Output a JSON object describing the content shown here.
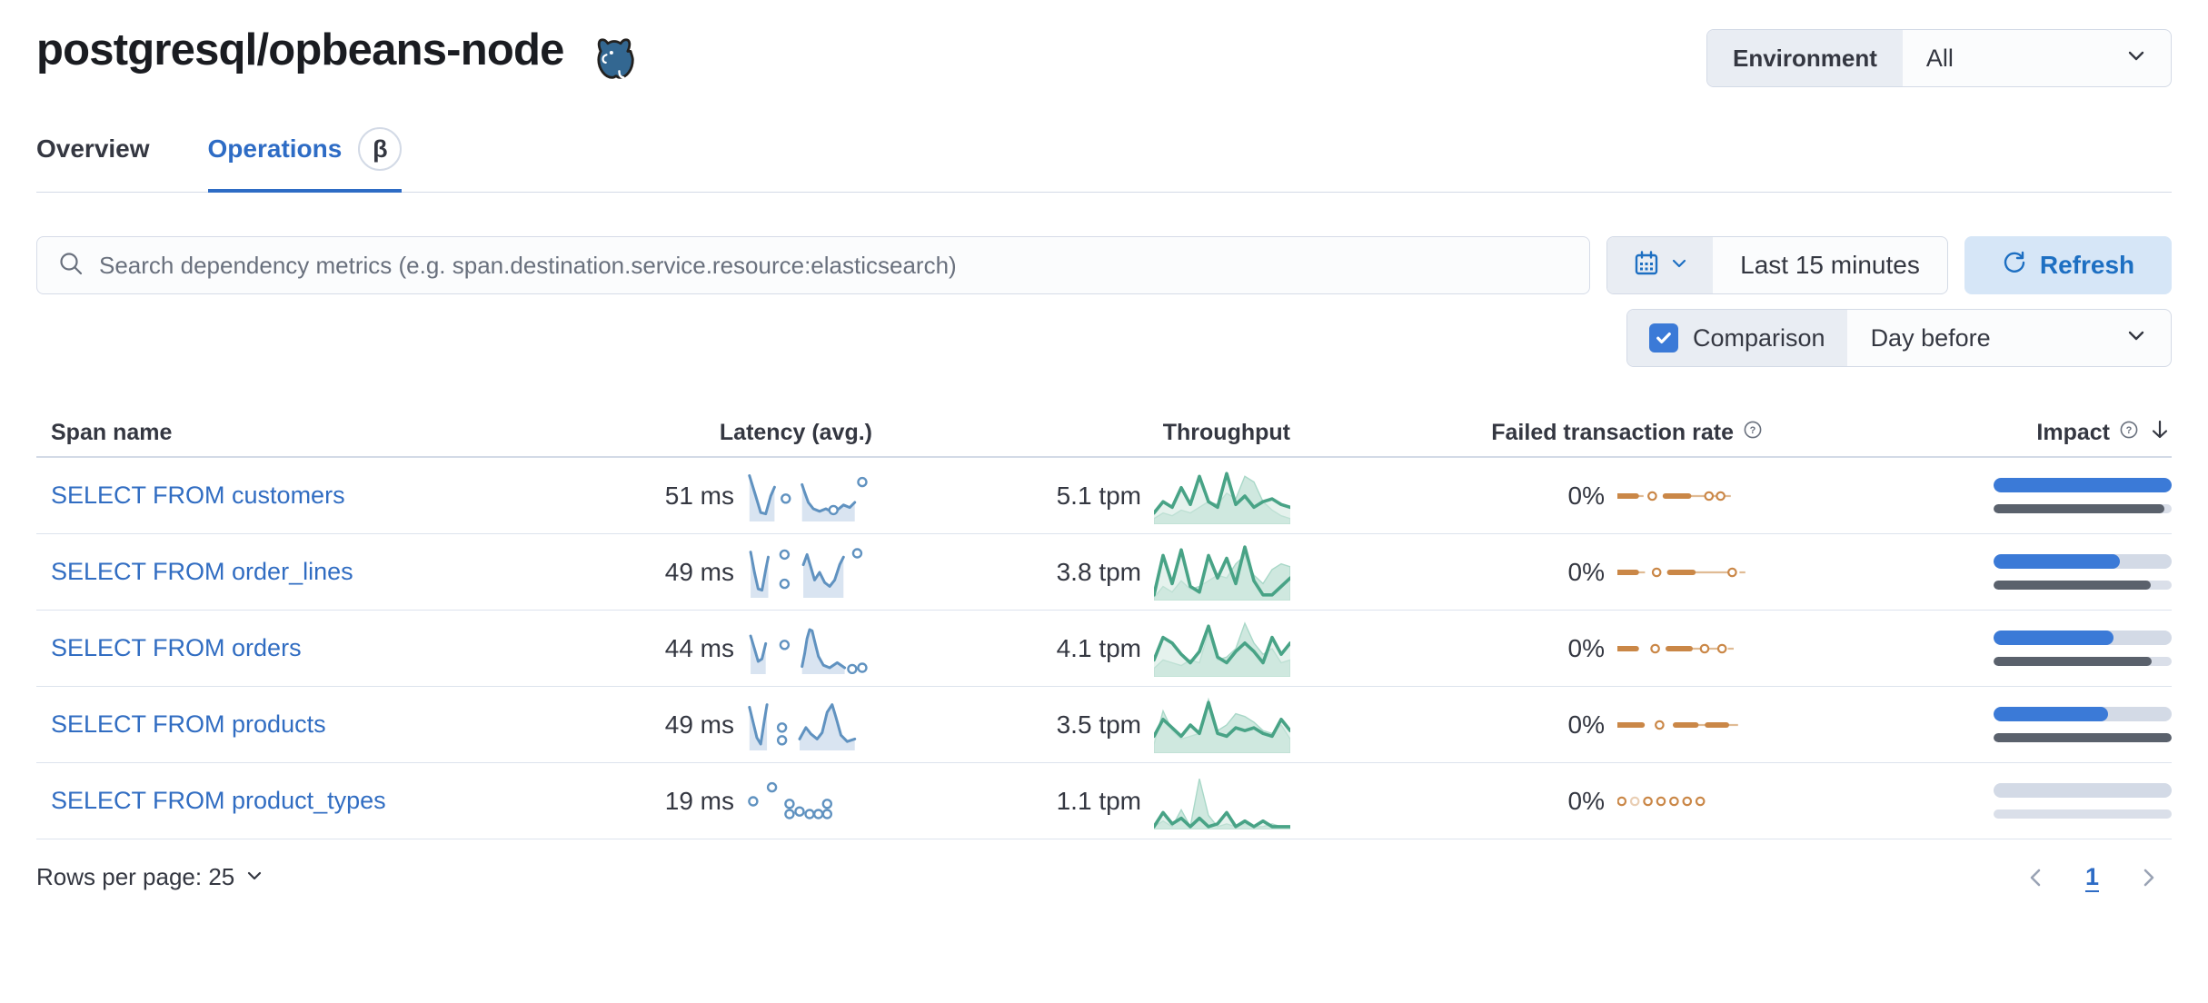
{
  "app": {
    "title": "postgresql/opbeans-node",
    "title_icon": "postgresql-elephant-icon"
  },
  "environment_filter": {
    "label": "Environment",
    "value": "All"
  },
  "tabs": [
    {
      "label": "Overview",
      "active": false
    },
    {
      "label": "Operations",
      "active": true,
      "badge": "β"
    }
  ],
  "toolbar": {
    "search": {
      "placeholder": "Search dependency metrics (e.g. span.destination.service.resource:elasticsearch)"
    },
    "time_picker": {
      "value": "Last 15 minutes"
    },
    "refresh_button": {
      "label": "Refresh"
    },
    "comparison": {
      "label": "Comparison",
      "checked": true,
      "value": "Day before"
    }
  },
  "table": {
    "columns": [
      {
        "label": "Span name"
      },
      {
        "label": "Latency (avg.)"
      },
      {
        "label": "Throughput"
      },
      {
        "label": "Failed transaction rate",
        "help_icon": true
      },
      {
        "label": "Impact",
        "help_icon": true,
        "sorted": "desc"
      }
    ],
    "rows": [
      {
        "span_name": "SELECT FROM customers",
        "latency": "51 ms",
        "throughput": "5.1 tpm",
        "failed_rate": "0%",
        "impact": {
          "current": 1.0,
          "previous": 0.96
        },
        "latency_spark": {
          "segments": [
            [
              [
                2,
                4
              ],
              [
                7,
                20
              ],
              [
                11,
                33
              ],
              [
                15,
                34
              ],
              [
                19,
                20
              ],
              [
                22,
                13
              ]
            ],
            [
              [
                44,
                11
              ],
              [
                46,
                17
              ],
              [
                49,
                25
              ],
              [
                53,
                30
              ],
              [
                58,
                32
              ],
              [
                63,
                30
              ],
              [
                67,
                32
              ],
              [
                72,
                31
              ],
              [
                77,
                27
              ],
              [
                82,
                29
              ],
              [
                86,
                25
              ]
            ]
          ],
          "dots": [
            [
              31,
              22
            ],
            [
              69,
              31
            ],
            [
              92,
              9
            ]
          ]
        },
        "throughput_spark": {
          "current": [
            32,
            24,
            28,
            14,
            26,
            6,
            24,
            28,
            4,
            26,
            20,
            28,
            24,
            22,
            26,
            28
          ],
          "previous": [
            36,
            32,
            34,
            30,
            32,
            28,
            24,
            26,
            18,
            22,
            6,
            10,
            24,
            30,
            34,
            36
          ]
        },
        "failed_spark": {
          "thick": [
            [
              0,
              13
            ],
            [
              33,
              49
            ]
          ],
          "thin": [
            [
              13,
              18
            ],
            [
              49,
              61
            ],
            [
              66,
              68
            ],
            [
              74,
              78
            ]
          ],
          "dots": [
            24,
            63,
            71
          ],
          "faint_dots": []
        }
      },
      {
        "span_name": "SELECT FROM order_lines",
        "latency": "49 ms",
        "throughput": "3.8 tpm",
        "failed_rate": "0%",
        "impact": {
          "current": 0.71,
          "previous": 0.885
        },
        "latency_spark": {
          "segments": [
            [
              [
                3,
                4
              ],
              [
                6,
                20
              ],
              [
                9,
                33
              ],
              [
                12,
                34
              ],
              [
                15,
                18
              ],
              [
                17,
                8
              ]
            ],
            [
              [
                45,
                14
              ],
              [
                48,
                6
              ],
              [
                51,
                16
              ],
              [
                54,
                26
              ],
              [
                58,
                20
              ],
              [
                62,
                28
              ],
              [
                66,
                31
              ],
              [
                70,
                26
              ],
              [
                74,
                14
              ],
              [
                77,
                8
              ]
            ]
          ],
          "dots": [
            [
              30,
              6
            ],
            [
              30,
              29
            ],
            [
              88,
              5
            ]
          ]
        },
        "throughput_spark": {
          "current": [
            36,
            8,
            28,
            4,
            30,
            34,
            8,
            24,
            10,
            28,
            2,
            26,
            36,
            36,
            30,
            24
          ],
          "previous": [
            38,
            30,
            34,
            26,
            32,
            30,
            26,
            22,
            24,
            14,
            8,
            22,
            28,
            18,
            14,
            16
          ]
        },
        "failed_spark": {
          "thick": [
            [
              0,
              13
            ],
            [
              36,
              52
            ]
          ],
          "thin": [
            [
              13,
              19
            ],
            [
              52,
              76
            ],
            [
              84,
              88
            ]
          ],
          "dots": [
            27,
            79
          ],
          "faint_dots": []
        }
      },
      {
        "span_name": "SELECT FROM orders",
        "latency": "44 ms",
        "throughput": "4.1 tpm",
        "failed_rate": "0%",
        "impact": {
          "current": 0.675,
          "previous": 0.89
        },
        "latency_spark": {
          "segments": [
            [
              [
                3,
                10
              ],
              [
                6,
                20
              ],
              [
                9,
                30
              ],
              [
                12,
                28
              ],
              [
                15,
                16
              ]
            ],
            [
              [
                44,
                34
              ],
              [
                46,
                24
              ],
              [
                48,
                12
              ],
              [
                50,
                5
              ],
              [
                52,
                6
              ],
              [
                54,
                14
              ],
              [
                57,
                26
              ],
              [
                61,
                33
              ],
              [
                66,
                35
              ],
              [
                72,
                31
              ],
              [
                78,
                35
              ]
            ]
          ],
          "dots": [
            [
              30,
              17
            ],
            [
              84,
              36
            ],
            [
              92,
              35
            ]
          ]
        },
        "throughput_spark": {
          "current": [
            28,
            12,
            16,
            24,
            30,
            22,
            4,
            26,
            30,
            22,
            16,
            22,
            30,
            12,
            24,
            16
          ],
          "previous": [
            34,
            28,
            30,
            32,
            28,
            30,
            8,
            28,
            26,
            20,
            2,
            16,
            24,
            20,
            30,
            28
          ]
        },
        "failed_spark": {
          "thick": [
            [
              0,
              13
            ],
            [
              35,
              50
            ]
          ],
          "thin": [
            [
              50,
              57
            ],
            [
              63,
              69
            ],
            [
              76,
              80
            ]
          ],
          "dots": [
            26,
            60,
            72
          ],
          "faint_dots": []
        }
      },
      {
        "span_name": "SELECT FROM products",
        "latency": "49 ms",
        "throughput": "3.5 tpm",
        "failed_rate": "0%",
        "impact": {
          "current": 0.645,
          "previous": 1.0
        },
        "latency_spark": {
          "segments": [
            [
              [
                2,
                6
              ],
              [
                5,
                18
              ],
              [
                8,
                30
              ],
              [
                11,
                35
              ],
              [
                14,
                16
              ],
              [
                16,
                4
              ]
            ],
            [
              [
                42,
                31
              ],
              [
                47,
                22
              ],
              [
                51,
                27
              ],
              [
                56,
                31
              ],
              [
                60,
                26
              ],
              [
                64,
                10
              ],
              [
                68,
                4
              ],
              [
                71,
                14
              ],
              [
                75,
                28
              ],
              [
                80,
                33
              ],
              [
                86,
                31
              ]
            ]
          ],
          "dots": [
            [
              28,
              22
            ],
            [
              28,
              32
            ]
          ]
        },
        "throughput_spark": {
          "current": [
            28,
            16,
            22,
            28,
            20,
            26,
            4,
            26,
            28,
            22,
            24,
            22,
            26,
            28,
            16,
            24
          ],
          "previous": [
            34,
            10,
            24,
            30,
            28,
            26,
            2,
            24,
            20,
            12,
            14,
            18,
            24,
            26,
            20,
            30
          ]
        },
        "failed_spark": {
          "thick": [
            [
              0,
              17
            ],
            [
              40,
              54
            ],
            [
              62,
              75
            ]
          ],
          "thin": [
            [
              54,
              62
            ],
            [
              75,
              83
            ]
          ],
          "dots": [
            29
          ],
          "faint_dots": []
        }
      },
      {
        "span_name": "SELECT FROM product_types",
        "latency": "19 ms",
        "throughput": "1.1 tpm",
        "failed_rate": "0%",
        "impact": {
          "current": 0.0,
          "previous": 0.0
        },
        "latency_spark": {
          "segments": [],
          "dots": [
            [
              5,
              20
            ],
            [
              20,
              9
            ],
            [
              34,
              22
            ],
            [
              34,
              30
            ],
            [
              42,
              28
            ],
            [
              50,
              30
            ],
            [
              57,
              30
            ],
            [
              64,
              22
            ],
            [
              64,
              30
            ]
          ]
        },
        "throughput_spark": {
          "current": [
            38,
            28,
            36,
            32,
            38,
            32,
            38,
            36,
            28,
            38,
            34,
            38,
            34,
            38,
            38,
            38
          ],
          "previous": [
            38,
            34,
            38,
            26,
            38,
            4,
            30,
            38,
            36,
            38,
            36,
            38,
            38,
            36,
            38,
            38
          ]
        },
        "failed_spark": {
          "thick": [],
          "thin": [],
          "dots": [
            3,
            12,
            21,
            30,
            39,
            48,
            57
          ],
          "faint_dots": [
            12
          ]
        }
      }
    ]
  },
  "footer": {
    "rows_per_page": "Rows per page: 25",
    "page": "1"
  },
  "colors": {
    "link": "#316dc2",
    "tab_active": "#2e6cc5",
    "title": "#1a1c21",
    "text": "#343741",
    "subdued": "#69707d",
    "border": "#d3dae6",
    "primary": "#1d6fc2",
    "refresh_bg": "#d6e6f7",
    "checkbox": "#3b7ad7",
    "latency_line": "#6092c0",
    "latency_fill": "#d9e4f1",
    "throughput_line": "#48a386",
    "throughput_fill": "#cfe8df",
    "throughput_fill_stroke": "#a9d8c8",
    "failed": "#ca8747",
    "failed_thin": "#e0bb94",
    "impact_bar": "#3b7ad7",
    "impact_previous": "#5a616c",
    "impact_track": "#d3dae6"
  }
}
